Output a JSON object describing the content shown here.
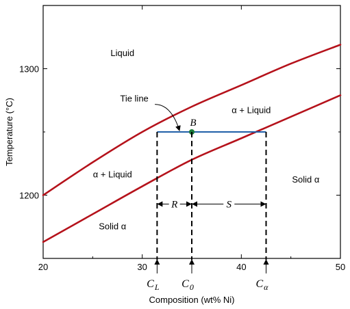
{
  "chart_data": {
    "type": "line",
    "title": "",
    "xlabel": "Composition (wt% Ni)",
    "ylabel": "Temperature (°C)",
    "xlim": [
      20,
      50
    ],
    "ylim": [
      1150,
      1350
    ],
    "xticks": [
      20,
      30,
      40,
      50
    ],
    "xtick_labels": [
      "20",
      "30",
      "40",
      "50"
    ],
    "yticks": [
      1200,
      1300
    ],
    "ytick_labels": [
      "1200",
      "1300"
    ],
    "grid": false,
    "series": [
      {
        "key": "liquidus",
        "color": "#b5121b",
        "x": [
          20,
          25,
          30,
          35,
          40,
          45,
          50
        ],
        "y": [
          1200,
          1226,
          1250,
          1270,
          1287,
          1304,
          1319
        ]
      },
      {
        "key": "solidus",
        "color": "#b5121b",
        "x": [
          20,
          25,
          30,
          35,
          40,
          45,
          50
        ],
        "y": [
          1163,
          1185,
          1207,
          1228,
          1245,
          1262,
          1279
        ]
      }
    ],
    "tie_line": {
      "x1": 31.5,
      "x2": 42.5,
      "y": 1250,
      "color": "#1f5fa8"
    },
    "point_B": {
      "label": "B",
      "x": 35,
      "y": 1250,
      "color": "#1a7a3a"
    },
    "dashed_lines": [
      {
        "x": 31.5,
        "label": "C",
        "sub": "L"
      },
      {
        "x": 35,
        "label": "C",
        "sub": "0"
      },
      {
        "x": 42.5,
        "label": "C",
        "sub": "α"
      }
    ],
    "lever": {
      "y": 1193,
      "R": {
        "label": "R",
        "x1": 31.5,
        "x2": 35
      },
      "S": {
        "label": "S",
        "x1": 35,
        "x2": 42.5
      }
    },
    "regions": [
      {
        "label": "Liquid",
        "x": 28,
        "y": 1310
      },
      {
        "label": "α + Liquid",
        "x": 41,
        "y": 1265
      },
      {
        "label": "α + Liquid",
        "x": 27,
        "y": 1214
      },
      {
        "label": "Solid α",
        "x": 46.5,
        "y": 1210
      },
      {
        "label": "Solid α",
        "x": 27,
        "y": 1173
      }
    ],
    "annotations": [
      {
        "label": "Tie line",
        "x": 29.2,
        "y": 1274
      }
    ]
  }
}
